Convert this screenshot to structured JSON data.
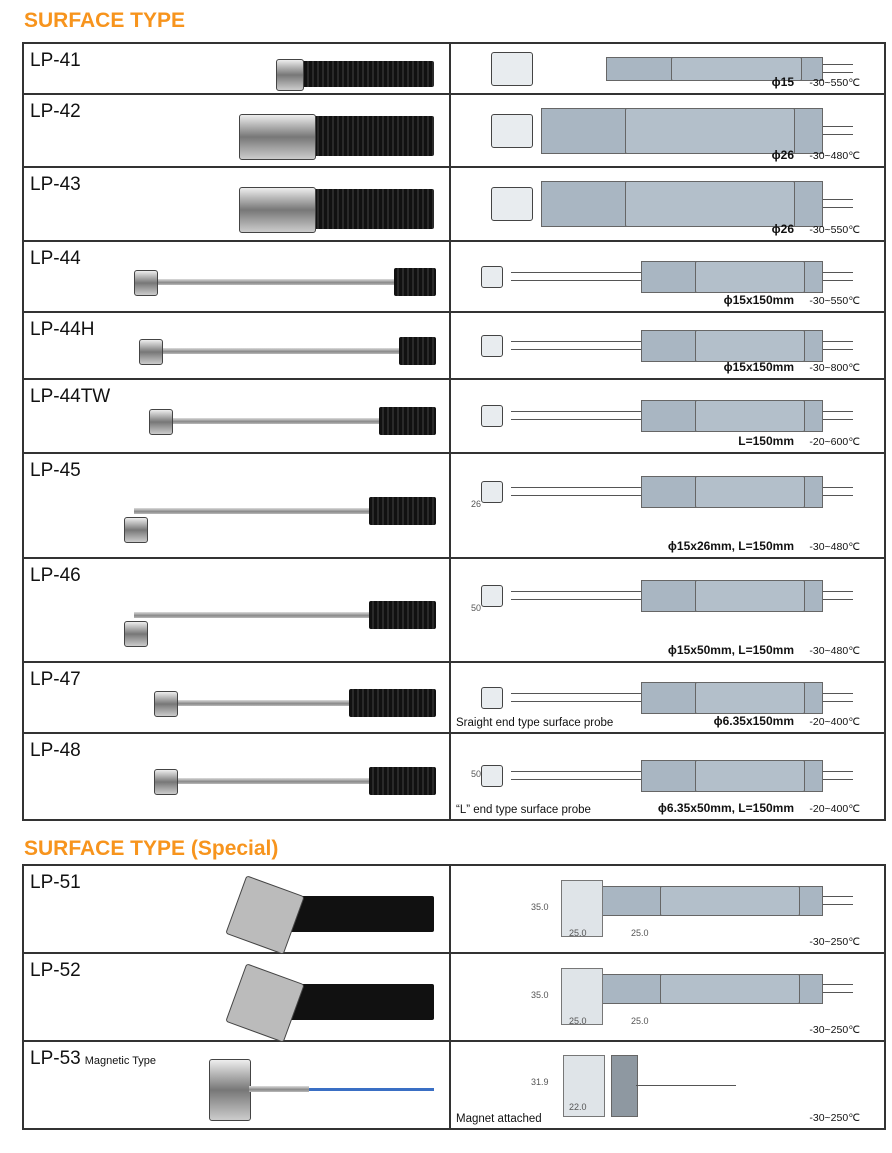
{
  "sections": [
    {
      "title": "SURFACE TYPE",
      "rows": [
        {
          "model": "LP-41",
          "spec": "ϕ15",
          "range": "-30~550℃"
        },
        {
          "model": "LP-42",
          "spec": "ϕ26",
          "range": "-30~480℃"
        },
        {
          "model": "LP-43",
          "spec": "ϕ26",
          "range": "-30~550℃"
        },
        {
          "model": "LP-44",
          "spec": "ϕ15x150mm",
          "range": "-30~550℃"
        },
        {
          "model": "LP-44H",
          "spec": "ϕ15x150mm",
          "range": "-30~800℃"
        },
        {
          "model": "LP-44TW",
          "spec": "L=150mm",
          "range": "-20~600℃"
        },
        {
          "model": "LP-45",
          "spec": "ϕ15x26mm, L=150mm",
          "range": "-30~480℃",
          "dim": "26"
        },
        {
          "model": "LP-46",
          "spec": "ϕ15x50mm, L=150mm",
          "range": "-30~480℃",
          "dim": "50"
        },
        {
          "model": "LP-47",
          "spec": "ϕ6.35x150mm",
          "range": "-20~400℃",
          "caption": "Sraight end type surface probe"
        },
        {
          "model": "LP-48",
          "spec": "ϕ6.35x50mm, L=150mm",
          "range": "-20~400℃",
          "caption": "“L”  end type surface probe",
          "dim": "50"
        }
      ]
    },
    {
      "title": "SURFACE TYPE (Special)",
      "rows": [
        {
          "model": "LP-51",
          "range": "-30~250℃",
          "dim": "35.0",
          "dim2": "25.0",
          "dim3": "25.0"
        },
        {
          "model": "LP-52",
          "range": "-30~250℃",
          "dim": "35.0",
          "dim2": "25.0",
          "dim3": "25.0"
        },
        {
          "model": "LP-53",
          "note": "Magnetic Type",
          "range": "-30~250℃",
          "caption": "Magnet attached",
          "dim": "31.9",
          "dim2": "22.0"
        }
      ]
    }
  ],
  "colors": {
    "accent": "#f7941d",
    "drawing": "#a9b6c2"
  }
}
